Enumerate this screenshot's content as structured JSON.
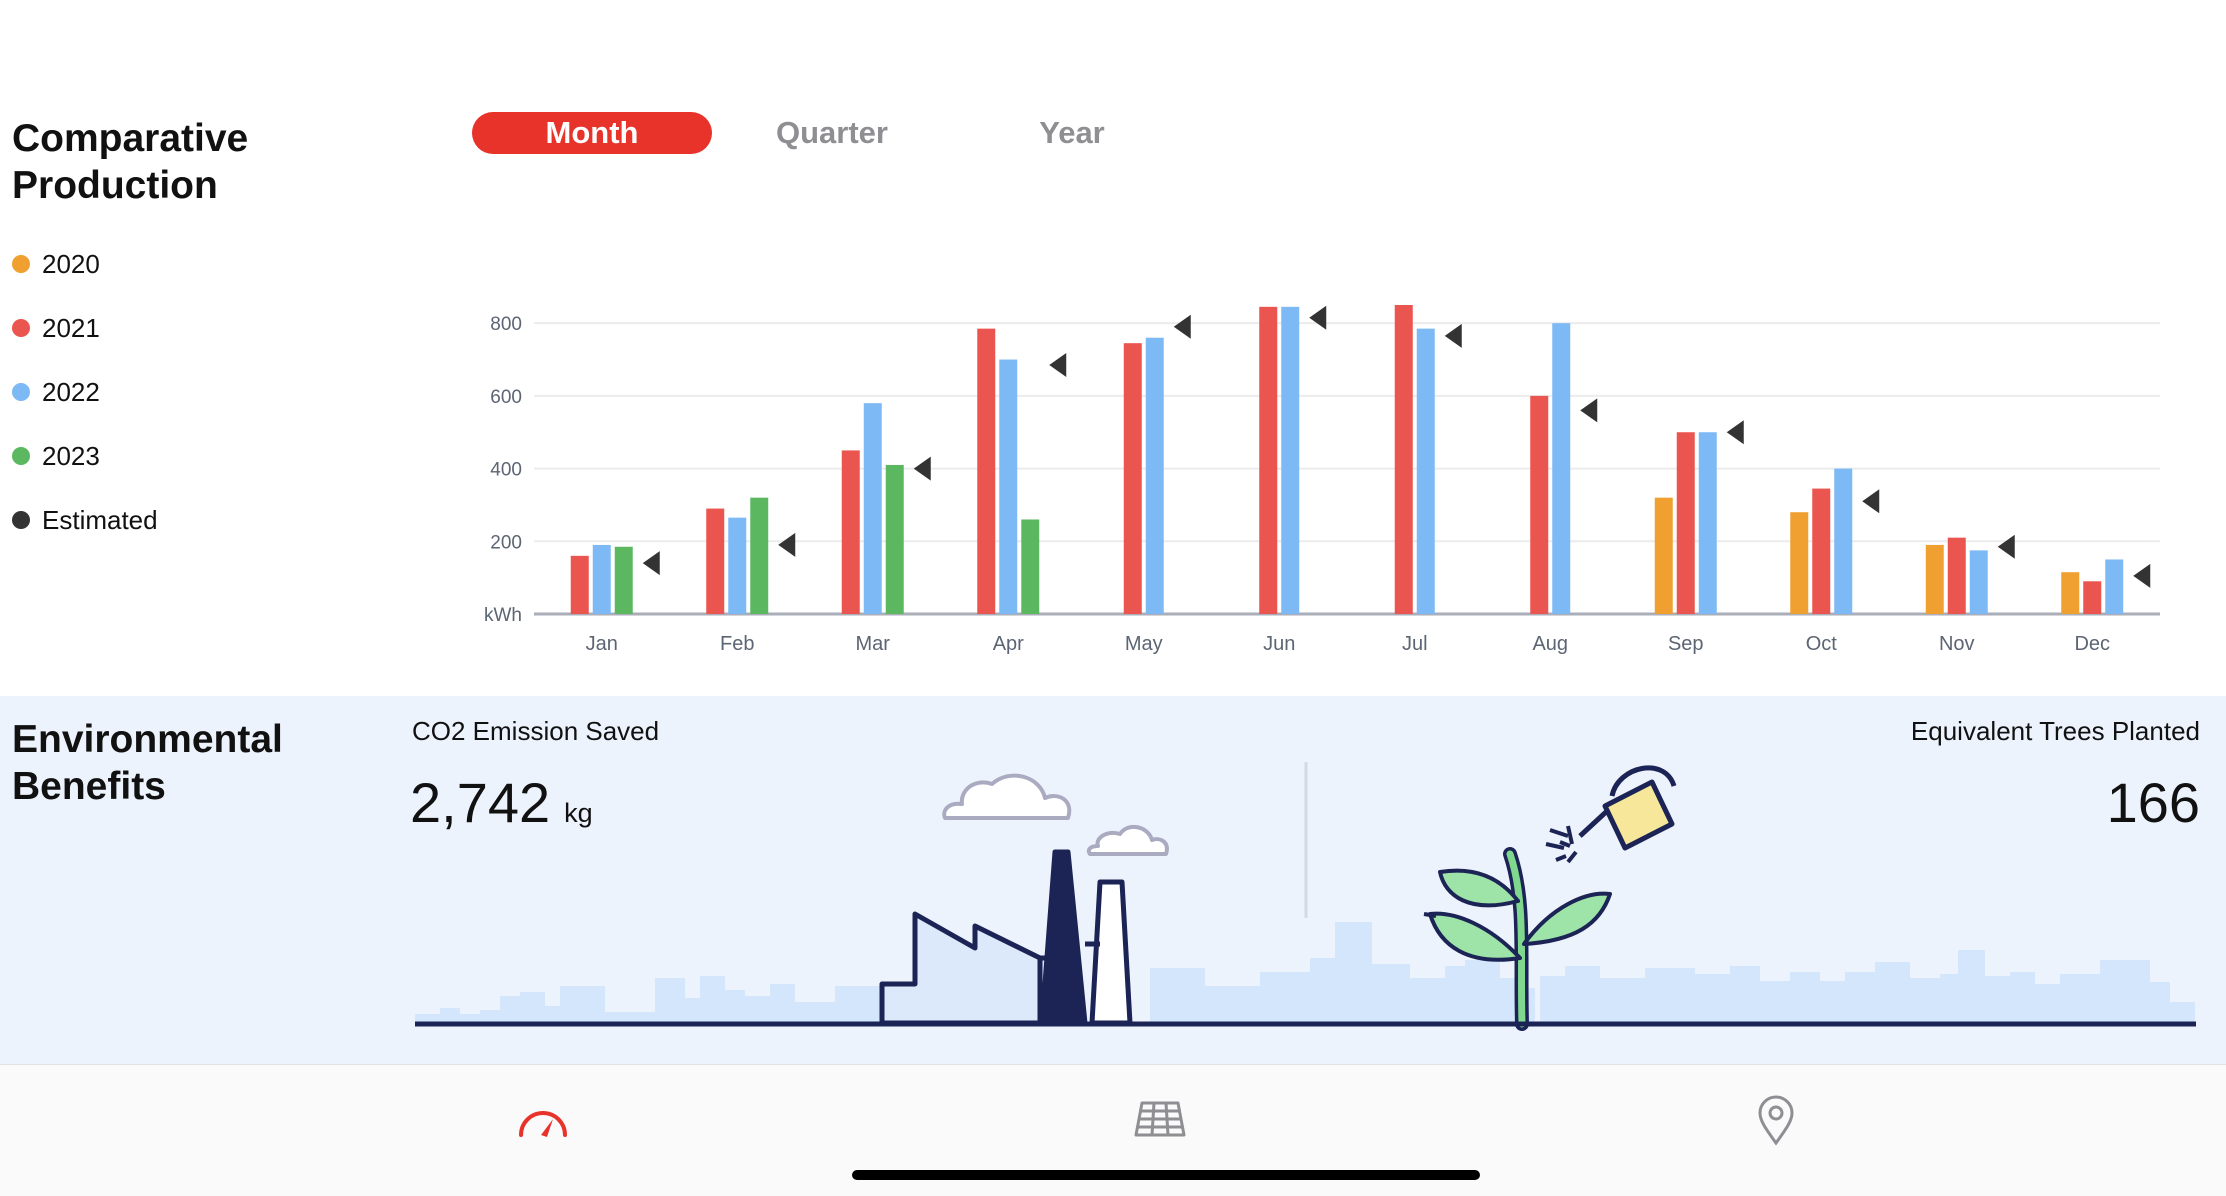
{
  "production": {
    "title_line1": "Comparative",
    "title_line2": "Production",
    "legend": [
      {
        "label": "2020",
        "color": "#f0a030"
      },
      {
        "label": "2021",
        "color": "#eb5550"
      },
      {
        "label": "2022",
        "color": "#7dbaf5"
      },
      {
        "label": "2023",
        "color": "#5cb860"
      },
      {
        "label": "Estimated",
        "color": "#333333"
      }
    ],
    "segments": [
      {
        "label": "Month",
        "active": true
      },
      {
        "label": "Quarter",
        "active": false
      },
      {
        "label": "Year",
        "active": false
      }
    ]
  },
  "chart_data": {
    "type": "bar",
    "categories": [
      "Jan",
      "Feb",
      "Mar",
      "Apr",
      "May",
      "Jun",
      "Jul",
      "Aug",
      "Sep",
      "Oct",
      "Nov",
      "Dec"
    ],
    "ylabel": "kWh",
    "yticks": [
      200,
      400,
      600,
      800
    ],
    "ylim": [
      0,
      850
    ],
    "grid": true,
    "legend_position": "left",
    "series": [
      {
        "name": "2020",
        "color": "#f0a030",
        "values": [
          null,
          null,
          null,
          null,
          null,
          null,
          null,
          null,
          320,
          280,
          190,
          115
        ]
      },
      {
        "name": "2021",
        "color": "#eb5550",
        "values": [
          160,
          290,
          450,
          785,
          745,
          845,
          850,
          600,
          500,
          345,
          210,
          90
        ]
      },
      {
        "name": "2022",
        "color": "#7dbaf5",
        "values": [
          190,
          265,
          580,
          700,
          760,
          845,
          785,
          800,
          500,
          400,
          175,
          150
        ]
      },
      {
        "name": "2023",
        "color": "#5cb860",
        "values": [
          185,
          320,
          410,
          260,
          null,
          null,
          null,
          null,
          null,
          null,
          null,
          null
        ]
      }
    ],
    "estimated": {
      "name": "Estimated",
      "color": "#333333",
      "values": [
        140,
        190,
        400,
        685,
        790,
        815,
        765,
        560,
        500,
        310,
        185,
        105
      ]
    }
  },
  "environment": {
    "title_line1": "Environmental",
    "title_line2": "Benefits",
    "co2_label": "CO2 Emission Saved",
    "co2_value": "2,742",
    "co2_unit": "kg",
    "trees_label": "Equivalent Trees Planted",
    "trees_value": "166"
  },
  "tabbar": {
    "tabs": [
      {
        "icon": "speedometer-icon",
        "active": true
      },
      {
        "icon": "solar-panel-icon",
        "active": false
      },
      {
        "icon": "location-pin-icon",
        "active": false
      }
    ],
    "active_color": "#e8332a",
    "inactive_color": "#8e8e93"
  }
}
